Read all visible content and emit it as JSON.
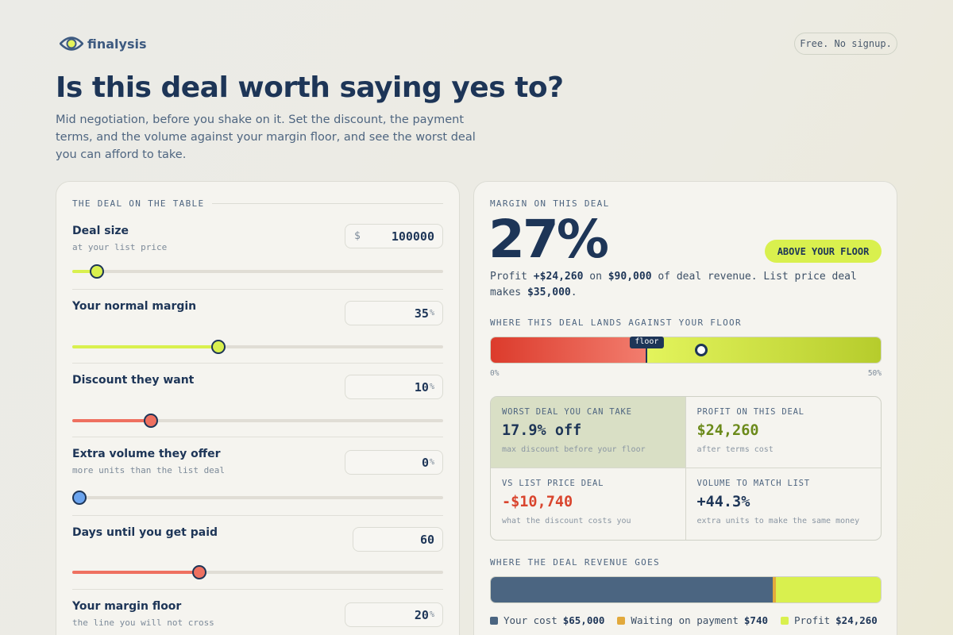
{
  "brand": "finalysis",
  "badge": "Free. No signup.",
  "hero": {
    "title": "Is this deal worth saying yes to?",
    "subtitle": "Mid negotiation, before you shake on it. Set the discount, the payment terms, and the volume against your margin floor, and see the worst deal you can afford to take."
  },
  "deal_panel": {
    "heading": "THE DEAL ON THE TABLE",
    "inputs": [
      {
        "label": "Deal size",
        "hint": "at your list price",
        "prefix": "$",
        "value": 100000
      },
      {
        "label": "Your normal margin",
        "value": 35,
        "unit": "%"
      },
      {
        "label": "Discount they want",
        "value": 10,
        "unit": "%"
      },
      {
        "label": "Extra volume they offer",
        "hint": "more units than the list deal",
        "value": 0,
        "unit": "%"
      },
      {
        "label": "Days until you get paid",
        "value": 60
      },
      {
        "label": "Your margin floor",
        "hint": "the line you will not cross",
        "value": 20,
        "unit": "%"
      }
    ]
  },
  "result_panel": {
    "heading": "MARGIN ON THIS DEAL",
    "margin": {
      "value": 27,
      "label": "27%"
    },
    "status": "ABOVE YOUR FLOOR",
    "summary": [
      "Profit ",
      "+$24,260",
      " on ",
      "$90,000",
      " of deal revenue. List price deal makes ",
      "$35,000",
      "."
    ],
    "gauge": {
      "heading": "WHERE THIS DEAL LANDS AGAINST YOUR FLOOR",
      "floor_label": "floor",
      "ticks": [
        {
          "value": 0,
          "label": "0%"
        },
        {
          "value": 50,
          "label": "50%"
        }
      ]
    },
    "stats": [
      {
        "label": "WORST DEAL YOU CAN TAKE",
        "value": "17.9% off",
        "note": "max discount before your floor"
      },
      {
        "label": "PROFIT ON THIS DEAL",
        "value": "$24,260",
        "note": "after terms cost"
      },
      {
        "label": "VS LIST PRICE DEAL",
        "value": "-$10,740",
        "note": "what the discount costs you"
      },
      {
        "label": "VOLUME TO MATCH LIST",
        "value": "+44.3%",
        "note": "extra units to make the same money"
      }
    ],
    "revenue": {
      "heading": "WHERE THE DEAL REVENUE GOES",
      "segments": [
        {
          "name": "Your cost",
          "value": 65000,
          "label": "$65,000",
          "color": "#4b6581"
        },
        {
          "name": "Waiting on payment",
          "value": 740,
          "label": "$740",
          "color": "#e2a93c"
        },
        {
          "name": "Profit",
          "value": 24260,
          "label": "$24,260",
          "color": "#d9f04e"
        }
      ]
    }
  }
}
